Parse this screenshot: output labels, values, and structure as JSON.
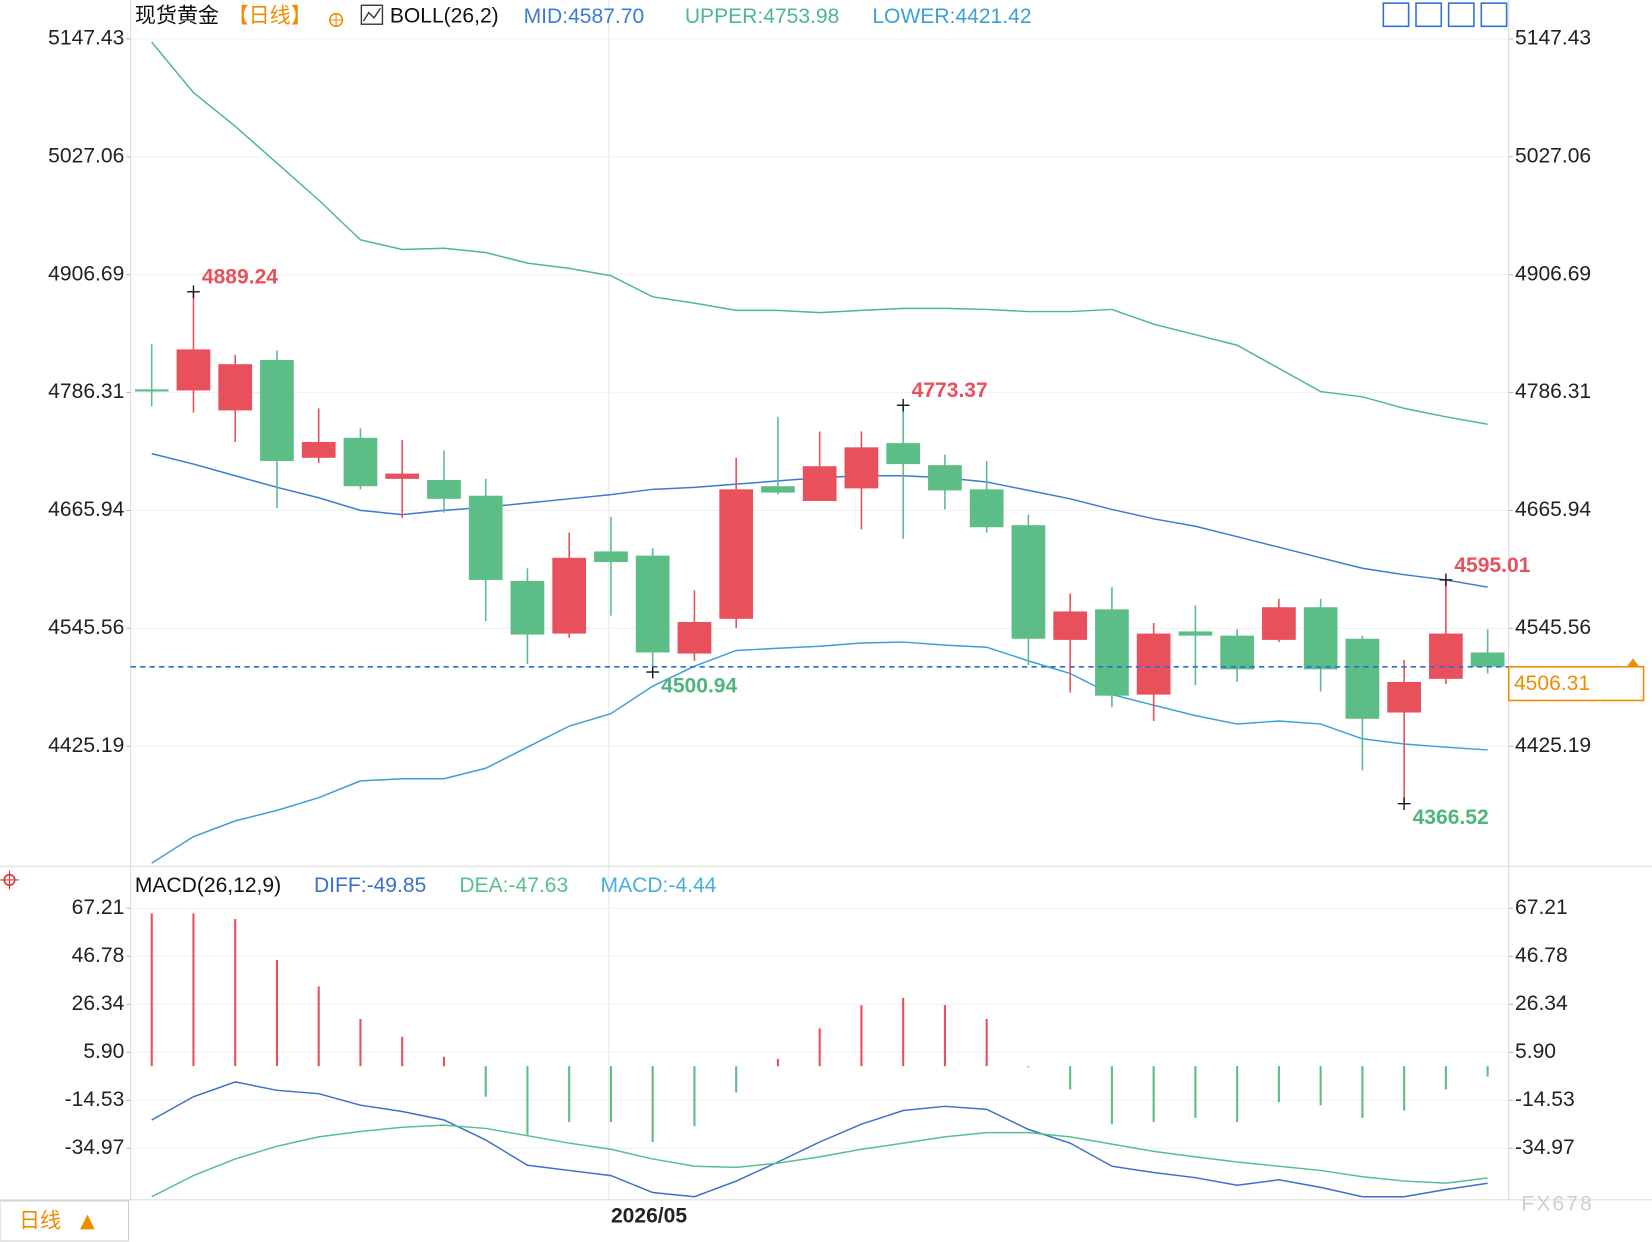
{
  "header": {
    "symbol": "现货黄金",
    "period": "【日线】"
  },
  "chart_data": [
    {
      "type": "candlestick",
      "title": "BOLL(26,2)",
      "categories": [
        null,
        null,
        null,
        null,
        null,
        null,
        null,
        null,
        null,
        null,
        null,
        "2026/05",
        null,
        null,
        null,
        null,
        null,
        null,
        null,
        null,
        null,
        null,
        null,
        null,
        null,
        null,
        null,
        null,
        null,
        null,
        null,
        null,
        null
      ],
      "open": [
        4789.6,
        4788.5,
        4768.1,
        4819.6,
        4719.7,
        4740.1,
        4698.2,
        4697.1,
        4681.0,
        4594.0,
        4540.2,
        4624.1,
        4619.8,
        4519.8,
        4555.3,
        4690.7,
        4675.6,
        4688.5,
        4734.7,
        4712.2,
        4687.5,
        4650.9,
        4533.8,
        4564.9,
        4477.9,
        4542.4,
        4538.1,
        4533.8,
        4567.1,
        4534.9,
        4459.6,
        4494.0,
        4520.9
      ],
      "high": [
        4835.8,
        4889.24,
        4825.0,
        4829.3,
        4770.2,
        4749.8,
        4738.0,
        4727.2,
        4698.2,
        4606.9,
        4643.4,
        4659.5,
        4627.3,
        4584.3,
        4719.7,
        4761.6,
        4746.6,
        4746.6,
        4773.37,
        4722.9,
        4716.5,
        4661.7,
        4581.1,
        4587.5,
        4551.0,
        4569.2,
        4544.5,
        4575.7,
        4575.7,
        4538.1,
        4513.4,
        4595.01,
        4544.5
      ],
      "low": [
        4772.4,
        4765.9,
        4735.8,
        4668.1,
        4714.3,
        4687.5,
        4658.4,
        4663.8,
        4553.1,
        4509.1,
        4535.9,
        4558.5,
        4500.94,
        4512.3,
        4545.6,
        4682.1,
        4675.6,
        4646.6,
        4636.9,
        4667.0,
        4643.4,
        4508.0,
        4480.0,
        4465.0,
        4451.0,
        4487.6,
        4490.8,
        4531.6,
        4481.1,
        4400.5,
        4366.52,
        4488.6,
        4499.4
      ],
      "close": [
        4787.4,
        4830.4,
        4815.3,
        4716.5,
        4735.8,
        4690.7,
        4703.6,
        4677.8,
        4595.0,
        4539.2,
        4617.6,
        4613.3,
        4520.9,
        4552.0,
        4687.5,
        4684.2,
        4711.1,
        4730.4,
        4713.3,
        4686.4,
        4648.8,
        4534.9,
        4562.8,
        4476.8,
        4540.2,
        4538.1,
        4503.7,
        4567.1,
        4503.7,
        4453.2,
        4490.8,
        4540.2,
        4506.31
      ],
      "up_color": "#e8505b",
      "down_color": "#5cbd87",
      "series": [
        {
          "name": "MID:",
          "color": "#3b7bd4",
          "values": [
            4724.0,
            4713.3,
            4701.4,
            4689.6,
            4678.9,
            4666.0,
            4661.7,
            4666.0,
            4669.2,
            4673.5,
            4677.8,
            4682.1,
            4687.5,
            4689.6,
            4692.8,
            4696.1,
            4699.3,
            4701.4,
            4701.4,
            4699.3,
            4695.0,
            4686.4,
            4677.8,
            4667.0,
            4657.4,
            4649.8,
            4639.1,
            4628.4,
            4617.6,
            4606.9,
            4600.4,
            4595.0,
            4587.7
          ],
          "value_labels": [
            null,
            null,
            null,
            null,
            null,
            null,
            null,
            null,
            null,
            null,
            null,
            null,
            null,
            null,
            null,
            null,
            null,
            null,
            null,
            null,
            null,
            null,
            null,
            null,
            null,
            null,
            null,
            null,
            null,
            null,
            null,
            null,
            "4587.70"
          ]
        },
        {
          "name": "UPPER:",
          "color": "#4cb98a",
          "values": [
            5144.2,
            5092.6,
            5058.2,
            5020.6,
            4983.0,
            4942.2,
            4932.5,
            4933.6,
            4929.3,
            4918.5,
            4913.1,
            4905.6,
            4884.1,
            4877.7,
            4870.2,
            4870.2,
            4868.0,
            4870.2,
            4872.3,
            4872.3,
            4871.2,
            4869.1,
            4869.1,
            4871.2,
            4856.2,
            4845.4,
            4834.7,
            4811.0,
            4787.4,
            4782.0,
            4770.2,
            4761.6,
            4753.98
          ]
        },
        {
          "name": "LOWER:",
          "color": "#3aa0d8",
          "values": [
            4305.9,
            4332.8,
            4348.9,
            4359.7,
            4372.6,
            4389.8,
            4391.9,
            4391.9,
            4402.7,
            4424.2,
            4445.7,
            4458.5,
            4486.5,
            4506.9,
            4523.0,
            4525.2,
            4527.3,
            4530.6,
            4531.6,
            4528.4,
            4526.3,
            4512.3,
            4499.4,
            4477.9,
            4467.1,
            4456.4,
            4447.8,
            4451.0,
            4447.8,
            4432.8,
            4427.4,
            4424.2,
            4421.42
          ]
        }
      ],
      "ylim": [
        4303.7,
        5187.2
      ],
      "yticks": [
        5147.43,
        5027.06,
        4906.69,
        4786.31,
        4665.94,
        4545.56,
        4425.19
      ],
      "last_price_line": true,
      "grid": true
    },
    {
      "type": "macd",
      "title": "MACD(26,12,9)",
      "series": [
        {
          "name": "DIFF:",
          "color": "#3a6fd0",
          "values": [
            -22.9,
            -13.0,
            -6.7,
            -10.3,
            -11.7,
            -16.6,
            -19.3,
            -22.9,
            -31.4,
            -42.2,
            -44.4,
            -46.6,
            -53.8,
            -55.6,
            -48.9,
            -40.8,
            -32.3,
            -24.7,
            -18.9,
            -17.1,
            -18.4,
            -26.9,
            -32.8,
            -42.6,
            -45.3,
            -47.5,
            -50.7,
            -48.4,
            -51.6,
            -55.6,
            -55.6,
            -52.5,
            -49.85
          ]
        },
        {
          "name": "DEA:",
          "color": "#55c08a",
          "values": [
            -55.6,
            -46.6,
            -39.5,
            -34.1,
            -30.1,
            -27.8,
            -26.0,
            -25.1,
            -26.5,
            -29.6,
            -32.8,
            -35.4,
            -39.5,
            -42.6,
            -43.1,
            -41.3,
            -38.6,
            -35.4,
            -32.8,
            -30.1,
            -28.3,
            -28.3,
            -30.1,
            -33.2,
            -36.3,
            -38.6,
            -40.8,
            -42.6,
            -44.4,
            -47.1,
            -48.9,
            -49.8,
            -47.63
          ]
        },
        {
          "name": "MACD:",
          "color": "#46aee0",
          "type": "bar",
          "up_color": "#e8505b",
          "down_color": "#5cbd87",
          "values": [
            65.0,
            65.0,
            62.7,
            45.2,
            34.0,
            20.1,
            12.5,
            4.0,
            -13.0,
            -29.2,
            -23.8,
            -23.8,
            -32.3,
            -25.6,
            -11.2,
            3.1,
            16.1,
            26.0,
            29.1,
            26.0,
            20.1,
            -0.5,
            -9.9,
            -24.7,
            -23.8,
            -22.0,
            -23.8,
            -15.3,
            -16.6,
            -22.0,
            -18.9,
            -9.9,
            -4.44
          ]
        }
      ],
      "ylim": [
        -56.94,
        82.9
      ],
      "yticks": [
        67.21,
        46.78,
        26.34,
        {
          "value": 5.9,
          "label": "5.90"
        },
        -14.53,
        -34.97
      ],
      "grid": true
    }
  ],
  "footer": {
    "period": "日线",
    "watermark": "FX678"
  }
}
